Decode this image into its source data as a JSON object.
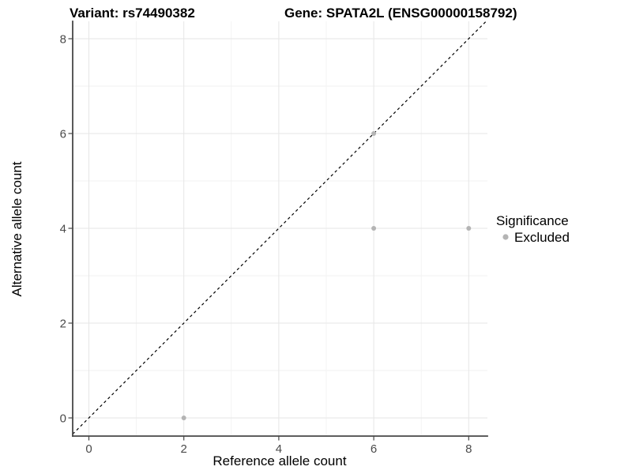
{
  "chart_data": {
    "type": "scatter",
    "titles": {
      "variant": "Variant: rs74490382",
      "gene": "Gene: SPATA2L (ENSG00000158792)"
    },
    "xlabel": "Reference allele count",
    "ylabel": "Alternative allele count",
    "x_ticks": [
      "0",
      "2",
      "4",
      "6",
      "8"
    ],
    "y_ticks": [
      "0",
      "2",
      "4",
      "6",
      "8"
    ],
    "x_tick_values": [
      0,
      2,
      4,
      6,
      8
    ],
    "y_tick_values": [
      0,
      2,
      4,
      6,
      8
    ],
    "xlim": [
      -0.34,
      8.39
    ],
    "ylim": [
      -0.38,
      8.37
    ],
    "grid": {
      "major": true,
      "minor": true
    },
    "identity_line": {
      "equation": "y = x",
      "style": "dashed",
      "color": "#000000"
    },
    "series": [
      {
        "name": "Excluded",
        "color": "#b4b4b4",
        "points": [
          [
            2,
            0
          ],
          [
            6,
            4
          ],
          [
            6,
            6
          ],
          [
            8,
            4
          ]
        ]
      }
    ],
    "legend": {
      "title": "Significance",
      "position": "right",
      "items": [
        {
          "label": "Excluded",
          "color": "#b4b4b4"
        }
      ]
    }
  }
}
